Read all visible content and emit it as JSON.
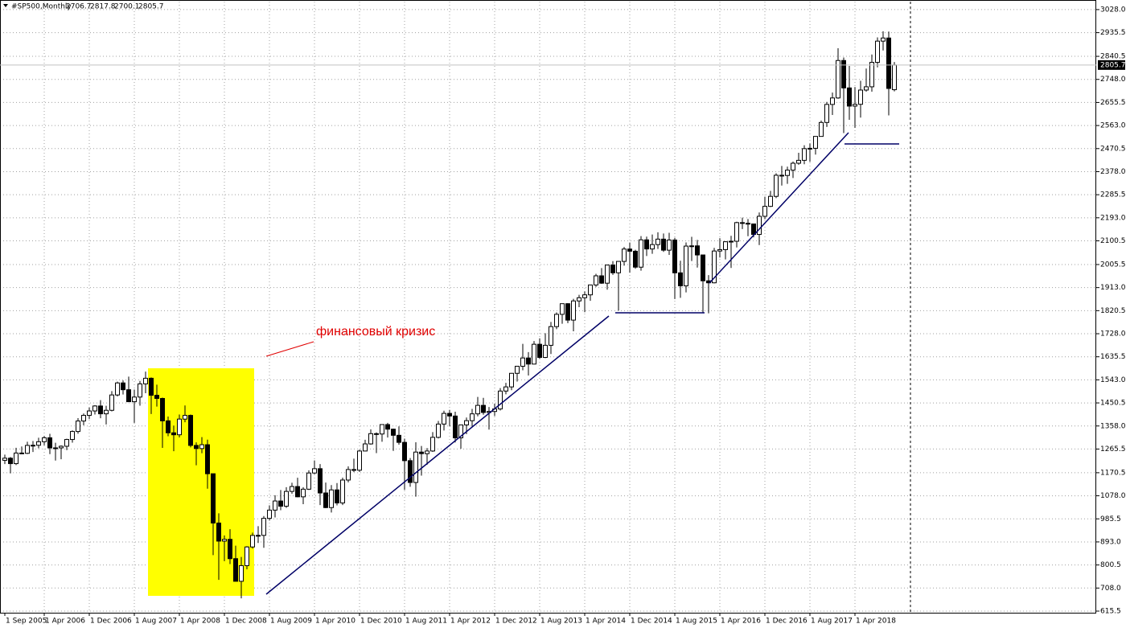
{
  "chart_data": {
    "type": "candlestick",
    "title": "#SP500,Monthly",
    "annotations": [
      "финансовый кризис"
    ],
    "categories": [
      "1 Sep 2005",
      null,
      null,
      null,
      null,
      null,
      null,
      "1 Apr 2006",
      null,
      null,
      null,
      null,
      null,
      null,
      null,
      "1 Dec 2006",
      null,
      null,
      null,
      null,
      null,
      null,
      null,
      "1 Aug 2007",
      null,
      null,
      null,
      null,
      null,
      null,
      null,
      "1 Apr 2008",
      null,
      null,
      null,
      null,
      null,
      null,
      null,
      "1 Dec 2008",
      null,
      null,
      null,
      null,
      null,
      null,
      null,
      "1 Aug 2009",
      null,
      null,
      null,
      null,
      null,
      null,
      null,
      "1 Apr 2010",
      null,
      null,
      null,
      null,
      null,
      null,
      null,
      "1 Dec 2010",
      null,
      null,
      null,
      null,
      null,
      null,
      null,
      "1 Aug 2011",
      null,
      null,
      null,
      null,
      null,
      null,
      null,
      "1 Apr 2012",
      null,
      null,
      null,
      null,
      null,
      null,
      null,
      "1 Dec 2012",
      null,
      null,
      null,
      null,
      null,
      null,
      null,
      "1 Aug 2013",
      null,
      null,
      null,
      null,
      null,
      null,
      null,
      "1 Apr 2014",
      null,
      null,
      null,
      null,
      null,
      null,
      null,
      "1 Dec 2014",
      null,
      null,
      null,
      null,
      null,
      null,
      null,
      "1 Aug 2015",
      null,
      null,
      null,
      null,
      null,
      null,
      null,
      "1 Apr 2016",
      null,
      null,
      null,
      null,
      null,
      null,
      null,
      "1 Dec 2016",
      null,
      null,
      null,
      null,
      null,
      null,
      null,
      "1 Aug 2017",
      null,
      null,
      null,
      null,
      null,
      null,
      null,
      "1 Apr 2018",
      null,
      null,
      null,
      null,
      null,
      null,
      null
    ],
    "open": [
      1220.3,
      1228.8,
      1207.0,
      1249.5,
      1248.3,
      1280.1,
      1280.7,
      1294.8,
      1310.6,
      1270.1,
      1270.2,
      1276.7,
      1303.8,
      1335.9,
      1377.9,
      1400.6,
      1418.3,
      1438.2,
      1406.8,
      1420.9,
      1482.4,
      1530.6,
      1503.4,
      1455.3,
      1474.0,
      1526.8,
      1549.4,
      1481.1,
      1468.4,
      1378.6,
      1330.6,
      1322.7,
      1385.6,
      1400.4,
      1280.0,
      1267.4,
      1282.8,
      1166.4,
      968.8,
      896.2,
      903.3,
      825.9,
      735.1,
      797.9,
      872.8,
      919.1,
      919.3,
      987.5,
      1020.6,
      1057.1,
      1036.2,
      1095.6,
      1115.1,
      1073.9,
      1104.5,
      1169.4,
      1186.7,
      1089.4,
      1030.7,
      1101.6,
      1049.3,
      1141.2,
      1183.3,
      1180.6,
      1257.6,
      1286.1,
      1327.2,
      1325.8,
      1363.6,
      1345.2,
      1320.6,
      1292.3,
      1218.9,
      1131.4,
      1253.3,
      1247.0,
      1257.6,
      1312.4,
      1365.7,
      1408.5,
      1397.9,
      1310.3,
      1362.2,
      1379.3,
      1406.6,
      1440.7,
      1412.2,
      1416.2,
      1426.2,
      1498.1,
      1514.7,
      1569.2,
      1597.6,
      1630.7,
      1606.3,
      1685.7,
      1633.0,
      1681.6,
      1756.5,
      1805.8,
      1848.4,
      1782.6,
      1859.5,
      1872.3,
      1883.9,
      1923.6,
      1960.2,
      1930.7,
      2003.4,
      1972.3,
      2018.1,
      2067.6,
      2058.9,
      1995.0,
      2104.5,
      2067.9,
      2085.5,
      2107.4,
      2063.1,
      2103.8,
      1972.2,
      1920.0,
      2079.4,
      2080.4,
      2043.9,
      1940.2,
      1932.2,
      2059.7,
      2065.3,
      2096.9,
      2098.9,
      2173.6,
      2170.9,
      2168.3,
      2126.2,
      2199.0,
      2238.8,
      2278.9,
      2363.6,
      2362.7,
      2384.2,
      2411.8,
      2423.4,
      2470.3,
      2471.7,
      2519.4,
      2575.3,
      2647.6,
      2673.6,
      2823.8,
      2713.8,
      2640.9,
      2648.1,
      2705.3,
      2718.4,
      2816.3,
      2901.5,
      2914.0,
      2706.7
    ],
    "high": [
      1243.1,
      1233.3,
      1270.6,
      1275.8,
      1294.9,
      1297.6,
      1310.9,
      1318.2,
      1326.7,
      1290.7,
      1280.4,
      1306.7,
      1340.3,
      1389.5,
      1407.9,
      1431.8,
      1441.6,
      1461.6,
      1438.9,
      1498.0,
      1535.6,
      1540.6,
      1555.9,
      1503.9,
      1538.7,
      1576.1,
      1552.8,
      1523.6,
      1471.8,
      1396.0,
      1359.7,
      1404.0,
      1440.2,
      1404.1,
      1292.2,
      1313.2,
      1303.0,
      1167.0,
      1007.5,
      918.9,
      943.9,
      877.9,
      832.9,
      876.0,
      930.2,
      956.2,
      996.7,
      1039.5,
      1080.2,
      1101.4,
      1112.4,
      1130.4,
      1150.5,
      1112.4,
      1180.2,
      1219.8,
      1205.1,
      1131.2,
      1120.9,
      1129.2,
      1150.7,
      1196.1,
      1227.1,
      1262.6,
      1302.7,
      1344.1,
      1332.3,
      1364.6,
      1370.6,
      1347.0,
      1356.5,
      1307.4,
      1229.3,
      1292.7,
      1277.6,
      1269.4,
      1333.5,
      1378.0,
      1419.2,
      1422.4,
      1415.3,
      1363.5,
      1391.7,
      1426.7,
      1474.5,
      1470.9,
      1434.3,
      1448.0,
      1509.9,
      1530.9,
      1570.3,
      1599.0,
      1687.2,
      1654.2,
      1698.8,
      1709.7,
      1729.9,
      1775.2,
      1813.6,
      1849.4,
      1850.8,
      1867.9,
      1884.0,
      1897.3,
      1924.0,
      1968.2,
      1991.4,
      2005.0,
      2019.3,
      2018.2,
      2075.8,
      2093.6,
      2064.6,
      2119.6,
      2117.5,
      2125.9,
      2134.7,
      2129.9,
      2132.8,
      2112.7,
      2020.9,
      2094.3,
      2116.5,
      2104.3,
      2045.0,
      1963.0,
      2072.2,
      2111.1,
      2099.1,
      2120.6,
      2177.1,
      2193.8,
      2187.9,
      2169.6,
      2214.1,
      2277.5,
      2301.0,
      2371.5,
      2401.0,
      2398.2,
      2418.7,
      2453.8,
      2484.0,
      2490.9,
      2520.0,
      2583.0,
      2657.7,
      2695.0,
      2872.9,
      2836.0,
      2801.9,
      2717.5,
      2742.2,
      2791.5,
      2848.0,
      2916.5,
      2940.9,
      2939.9,
      2817.8
    ],
    "low": [
      1205.4,
      1168.2,
      1201.1,
      1246.6,
      1245.7,
      1253.6,
      1268.4,
      1280.7,
      1245.3,
      1219.3,
      1224.5,
      1261.3,
      1290.9,
      1327.1,
      1360.9,
      1385.9,
      1403.9,
      1389.1,
      1363.9,
      1416.4,
      1476.7,
      1484.2,
      1454.3,
      1370.6,
      1439.3,
      1489.6,
      1406.1,
      1435.7,
      1270.1,
      1316.8,
      1256.9,
      1312.0,
      1373.1,
      1272.0,
      1200.4,
      1248.6,
      1106.4,
      839.8,
      741.0,
      815.7,
      804.3,
      734.5,
      666.8,
      783.3,
      866.1,
      888.9,
      869.3,
      978.5,
      991.0,
      1020.2,
      1029.4,
      1085.9,
      1071.6,
      1044.5,
      1101.4,
      1165.0,
      1040.8,
      1028.3,
      1010.9,
      1039.7,
      1040.9,
      1131.9,
      1173.0,
      1173.8,
      1256.0,
      1282.9,
      1249.1,
      1294.7,
      1311.8,
      1258.1,
      1282.9,
      1101.5,
      1114.2,
      1074.8,
      1158.7,
      1202.4,
      1254.0,
      1308.0,
      1340.0,
      1357.4,
      1292.0,
      1266.7,
      1325.4,
      1354.7,
      1396.6,
      1403.3,
      1343.4,
      1398.1,
      1420.0,
      1485.0,
      1501.5,
      1536.0,
      1581.3,
      1560.3,
      1604.6,
      1627.5,
      1630.0,
      1646.5,
      1746.2,
      1768.0,
      1770.5,
      1737.9,
      1834.4,
      1814.4,
      1859.8,
      1916.0,
      1928.0,
      1904.8,
      1964.0,
      1820.7,
      2001.0,
      1972.6,
      1988.4,
      1980.9,
      2039.7,
      2048.4,
      2067.9,
      2056.3,
      2044.0,
      1867.0,
      1871.9,
      1893.7,
      2019.4,
      1993.3,
      1812.3,
      1810.1,
      1930.0,
      2033.8,
      2025.9,
      1991.7,
      2074.0,
      2147.6,
      2119.1,
      2114.7,
      2083.8,
      2187.4,
      2236.0,
      2271.7,
      2322.3,
      2329.0,
      2352.7,
      2405.7,
      2407.7,
      2417.4,
      2446.6,
      2518.0,
      2557.4,
      2605.2,
      2670.0,
      2532.7,
      2585.9,
      2553.8,
      2594.6,
      2698.7,
      2698.9,
      2796.3,
      2864.1,
      2603.5,
      2700.1
    ],
    "close": [
      1228.8,
      1207.0,
      1249.5,
      1248.3,
      1280.1,
      1280.7,
      1294.8,
      1310.6,
      1270.1,
      1270.2,
      1276.7,
      1303.8,
      1335.9,
      1377.9,
      1400.6,
      1418.3,
      1438.2,
      1406.8,
      1420.9,
      1482.4,
      1530.6,
      1503.4,
      1455.3,
      1474.0,
      1526.8,
      1549.4,
      1481.1,
      1468.4,
      1378.6,
      1330.6,
      1322.7,
      1385.6,
      1400.4,
      1280.0,
      1267.4,
      1282.8,
      1166.4,
      968.8,
      896.2,
      903.3,
      825.9,
      735.1,
      797.9,
      872.8,
      919.1,
      919.3,
      987.5,
      1020.6,
      1057.1,
      1036.2,
      1095.6,
      1115.1,
      1073.9,
      1104.5,
      1169.4,
      1186.7,
      1089.4,
      1030.7,
      1101.6,
      1049.3,
      1141.2,
      1183.3,
      1180.6,
      1257.6,
      1286.1,
      1327.2,
      1325.8,
      1363.6,
      1345.2,
      1320.6,
      1292.3,
      1218.9,
      1131.4,
      1253.3,
      1247.0,
      1257.6,
      1312.4,
      1365.7,
      1408.5,
      1397.9,
      1310.3,
      1362.2,
      1379.3,
      1406.6,
      1440.7,
      1412.2,
      1416.2,
      1426.2,
      1498.1,
      1514.7,
      1569.2,
      1597.6,
      1630.7,
      1606.3,
      1685.7,
      1633.0,
      1681.6,
      1756.5,
      1805.8,
      1848.4,
      1782.6,
      1859.5,
      1872.3,
      1883.9,
      1923.6,
      1960.2,
      1930.7,
      2003.4,
      1972.3,
      2018.1,
      2067.6,
      2058.9,
      1995.0,
      2104.5,
      2067.9,
      2085.5,
      2107.4,
      2063.1,
      2103.8,
      1972.2,
      1920.0,
      2079.4,
      2080.4,
      2043.9,
      1940.2,
      1932.2,
      2059.7,
      2065.3,
      2096.9,
      2098.9,
      2173.6,
      2170.9,
      2168.3,
      2126.2,
      2199.0,
      2238.8,
      2278.9,
      2363.6,
      2362.7,
      2384.2,
      2411.8,
      2423.4,
      2470.3,
      2471.7,
      2519.4,
      2575.3,
      2647.6,
      2673.6,
      2823.8,
      2713.8,
      2640.9,
      2648.1,
      2705.3,
      2718.4,
      2816.3,
      2901.5,
      2914.0,
      2711.7,
      2805.7
    ],
    "up_color": "#ffffff",
    "down_color": "#000000",
    "wick_color": "#000000",
    "ylim": [
      609,
      3060
    ],
    "yticks": [
      {
        "value": 615.5,
        "label": "615.5"
      },
      {
        "value": 708,
        "label": "708.0"
      },
      {
        "value": 800.5,
        "label": "800.5"
      },
      {
        "value": 893,
        "label": "893.0"
      },
      {
        "value": 985.5,
        "label": "985.5"
      },
      {
        "value": 1078,
        "label": "1078.0"
      },
      {
        "value": 1170.5,
        "label": "1170.5"
      },
      {
        "value": 1265.5,
        "label": "1265.5"
      },
      {
        "value": 1358,
        "label": "1358.0"
      },
      {
        "value": 1450.5,
        "label": "1450.5"
      },
      {
        "value": 1543,
        "label": "1543.0"
      },
      {
        "value": 1635.5,
        "label": "1635.5"
      },
      {
        "value": 1728,
        "label": "1728.0"
      },
      {
        "value": 1820.5,
        "label": "1820.5"
      },
      {
        "value": 1913,
        "label": "1913.0"
      },
      {
        "value": 2005.5,
        "label": "2005.5"
      },
      {
        "value": 2100.5,
        "label": "2100.5"
      },
      {
        "value": 2193,
        "label": "2193.0"
      },
      {
        "value": 2285.5,
        "label": "2285.5"
      },
      {
        "value": 2378,
        "label": "2378.0"
      },
      {
        "value": 2470.5,
        "label": "2470.5"
      },
      {
        "value": 2563,
        "label": "2563.0"
      },
      {
        "value": 2655.5,
        "label": "2655.5"
      },
      {
        "value": 2748,
        "label": "2748.0"
      },
      {
        "value": 2840.5,
        "label": "2840.5"
      },
      {
        "value": 2935.5,
        "label": "2935.5"
      },
      {
        "value": 3028,
        "label": "3028.0"
      }
    ],
    "grid": true
  }
}
